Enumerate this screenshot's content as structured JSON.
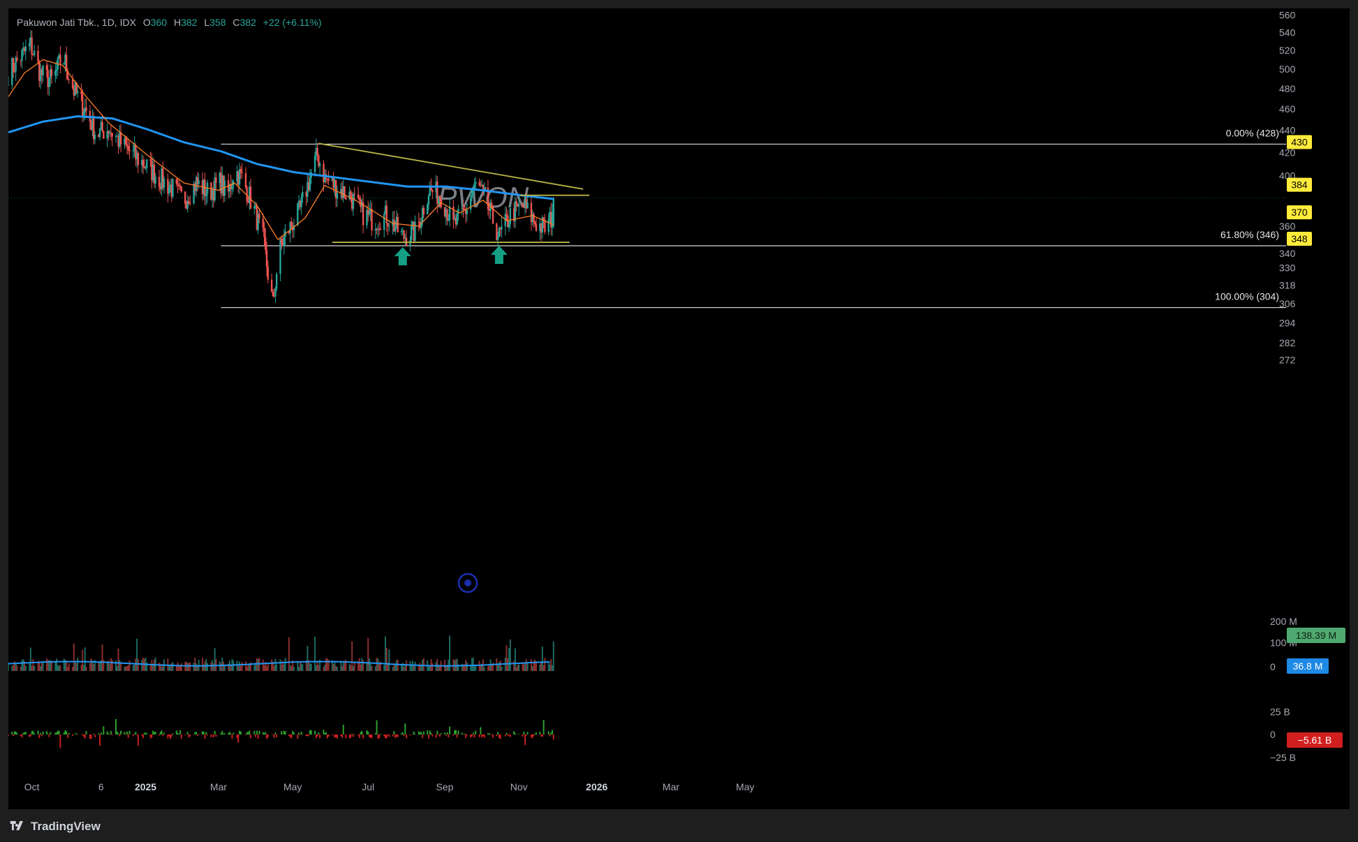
{
  "legend": {
    "symbol": "Pakuwon Jati Tbk., 1D, IDX",
    "open_label": "O",
    "open": "360",
    "high_label": "H",
    "high": "382",
    "low_label": "L",
    "low": "358",
    "close_label": "C",
    "close": "382",
    "change": "+22 (+6.11%)"
  },
  "footer": {
    "brand": "TradingView"
  },
  "colors": {
    "up": "#26a69a",
    "down": "#ef5350",
    "ma_long": "#2196f3",
    "ma_short": "#ff7f27",
    "trend": "#b9b344",
    "volume_up": "#1d6b63",
    "volume_down": "#8a2e2e",
    "flow_up": "#2e9e2e",
    "flow_down": "#c62020",
    "badge_yellow": "#ffeb3b"
  },
  "chart_data": {
    "type": "candlestick",
    "title": "PWON",
    "price_axis": {
      "ticks": [
        560,
        540,
        520,
        500,
        480,
        460,
        440,
        420,
        400,
        360,
        330,
        318,
        306,
        294,
        282,
        272
      ],
      "hidden_tick_labels": [
        "340"
      ],
      "ylim": [
        268,
        562
      ],
      "scale": "log"
    },
    "time_axis": {
      "labels": [
        "Oct",
        "6",
        "2025",
        "Mar",
        "May",
        "Jul",
        "Sep",
        "Nov",
        "2026",
        "Mar",
        "May"
      ],
      "bold_labels": [
        "2025",
        "2026"
      ],
      "range": [
        "2024-09-12",
        "2026-06-10"
      ]
    },
    "price_badges": [
      {
        "value": "430",
        "style": "yellow"
      },
      {
        "value": "384",
        "style": "yellow"
      },
      {
        "value": "370",
        "style": "yellow"
      },
      {
        "value": "348",
        "style": "yellow"
      }
    ],
    "fibonacci": {
      "range": [
        "2025-03-03",
        "2026-03-30"
      ],
      "levels": [
        {
          "label": "0.00% (428)",
          "price": 428
        },
        {
          "label": "61.80% (346)",
          "price": 346
        },
        {
          "label": "100.00% (304)",
          "price": 304
        }
      ]
    },
    "trendlines": [
      {
        "name": "descending",
        "from": [
          "2025-05-21",
          428
        ],
        "to": [
          "2025-12-21",
          389
        ]
      },
      {
        "name": "support",
        "from": [
          "2025-06-01",
          348
        ],
        "to": [
          "2025-12-10",
          348
        ]
      },
      {
        "name": "resistance",
        "from": [
          "2025-10-31",
          384
        ],
        "to": [
          "2025-12-26",
          384
        ]
      }
    ],
    "markers": [
      {
        "type": "arrow-up",
        "date": "2025-07-28",
        "price": 338
      },
      {
        "type": "arrow-up",
        "date": "2025-10-14",
        "price": 339
      }
    ],
    "price_keypoints": [
      [
        "2024-09-12",
        496
      ],
      [
        "2024-09-20",
        510
      ],
      [
        "2024-09-30",
        526
      ],
      [
        "2024-10-08",
        495
      ],
      [
        "2024-10-18",
        488
      ],
      [
        "2024-10-26",
        515
      ],
      [
        "2024-11-04",
        478
      ],
      [
        "2024-11-14",
        458
      ],
      [
        "2024-11-22",
        436
      ],
      [
        "2024-12-02",
        442
      ],
      [
        "2024-12-12",
        428
      ],
      [
        "2024-12-22",
        418
      ],
      [
        "2025-01-02",
        408
      ],
      [
        "2025-01-12",
        398
      ],
      [
        "2025-01-22",
        390
      ],
      [
        "2025-02-01",
        380
      ],
      [
        "2025-02-11",
        394
      ],
      [
        "2025-02-21",
        386
      ],
      [
        "2025-03-03",
        395
      ],
      [
        "2025-03-08",
        382
      ],
      [
        "2025-03-14",
        405
      ],
      [
        "2025-03-20",
        398
      ],
      [
        "2025-03-28",
        378
      ],
      [
        "2025-04-06",
        350
      ],
      [
        "2025-04-10",
        326
      ],
      [
        "2025-04-14",
        305
      ],
      [
        "2025-04-19",
        342
      ],
      [
        "2025-04-26",
        356
      ],
      [
        "2025-05-06",
        372
      ],
      [
        "2025-05-12",
        392
      ],
      [
        "2025-05-20",
        418
      ],
      [
        "2025-05-26",
        398
      ],
      [
        "2025-06-05",
        390
      ],
      [
        "2025-06-15",
        384
      ],
      [
        "2025-06-25",
        370
      ],
      [
        "2025-07-05",
        364
      ],
      [
        "2025-07-15",
        368
      ],
      [
        "2025-07-28",
        352
      ],
      [
        "2025-08-08",
        356
      ],
      [
        "2025-08-18",
        388
      ],
      [
        "2025-08-28",
        384
      ],
      [
        "2025-09-07",
        360
      ],
      [
        "2025-09-17",
        372
      ],
      [
        "2025-09-26",
        394
      ],
      [
        "2025-10-06",
        372
      ],
      [
        "2025-10-14",
        352
      ],
      [
        "2025-10-24",
        370
      ],
      [
        "2025-11-03",
        375
      ],
      [
        "2025-11-13",
        362
      ],
      [
        "2025-11-21",
        358
      ],
      [
        "2025-11-25",
        366
      ],
      [
        "2025-11-27",
        382
      ]
    ],
    "moving_averages": [
      {
        "name": "MA long",
        "color": "#2196f3",
        "points": [
          [
            "2024-09-12",
            438
          ],
          [
            "2024-10-10",
            448
          ],
          [
            "2024-11-07",
            453
          ],
          [
            "2024-12-05",
            451
          ],
          [
            "2025-01-02",
            441
          ],
          [
            "2025-02-01",
            429
          ],
          [
            "2025-03-03",
            421
          ],
          [
            "2025-04-01",
            410
          ],
          [
            "2025-05-01",
            403
          ],
          [
            "2025-06-01",
            399
          ],
          [
            "2025-07-01",
            395
          ],
          [
            "2025-08-01",
            391
          ],
          [
            "2025-09-01",
            391
          ],
          [
            "2025-10-01",
            388
          ],
          [
            "2025-11-01",
            384
          ],
          [
            "2025-11-27",
            381
          ]
        ]
      },
      {
        "name": "MA short",
        "color": "#ff7f27",
        "points": [
          [
            "2024-09-12",
            472
          ],
          [
            "2024-09-25",
            496
          ],
          [
            "2024-10-10",
            510
          ],
          [
            "2024-10-26",
            504
          ],
          [
            "2024-11-14",
            472
          ],
          [
            "2024-12-02",
            447
          ],
          [
            "2025-01-02",
            418
          ],
          [
            "2025-02-01",
            394
          ],
          [
            "2025-03-01",
            388
          ],
          [
            "2025-03-14",
            394
          ],
          [
            "2025-04-01",
            376
          ],
          [
            "2025-04-18",
            350
          ],
          [
            "2025-05-10",
            366
          ],
          [
            "2025-05-26",
            392
          ],
          [
            "2025-06-20",
            380
          ],
          [
            "2025-07-20",
            362
          ],
          [
            "2025-08-10",
            360
          ],
          [
            "2025-08-28",
            378
          ],
          [
            "2025-09-12",
            370
          ],
          [
            "2025-10-01",
            380
          ],
          [
            "2025-10-20",
            364
          ],
          [
            "2025-11-10",
            368
          ],
          [
            "2025-11-27",
            361
          ]
        ]
      }
    ],
    "volume": {
      "axis_ticks": [
        "200 M",
        "100 M",
        "0"
      ],
      "badges": [
        {
          "value": "138.39 M",
          "style": "green"
        },
        {
          "value": "36.8 M",
          "style": "blue"
        }
      ],
      "unit": "M",
      "ylim": [
        0,
        205
      ],
      "last_value": 138.39,
      "ma_value": 36.8
    },
    "money_flow": {
      "axis_ticks": [
        "25 B",
        "0",
        "−25 B"
      ],
      "badges": [
        {
          "value": "−5.61 B",
          "style": "red"
        }
      ],
      "unit": "B",
      "ylim": [
        -40,
        40
      ],
      "last_value": -5.61
    }
  }
}
